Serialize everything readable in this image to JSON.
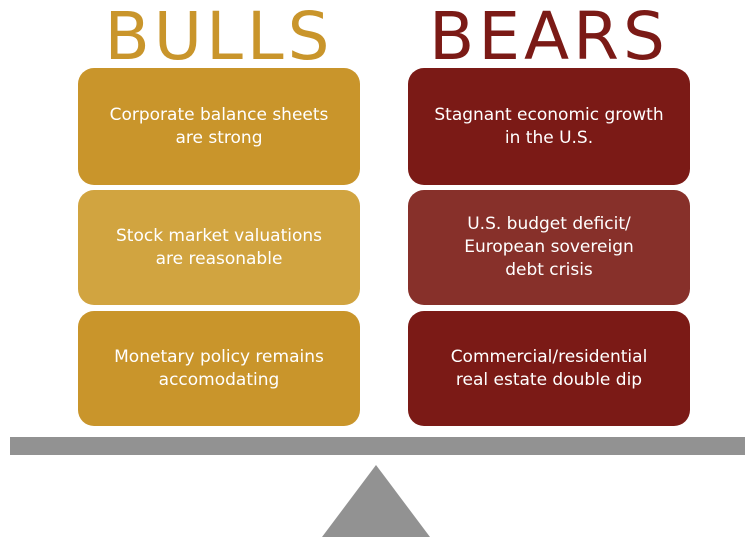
{
  "bulls": {
    "title": "BULLS",
    "items": [
      {
        "lines": [
          "Corporate balance sheets",
          "are strong"
        ]
      },
      {
        "lines": [
          "Stock market valuations",
          "are reasonable"
        ]
      },
      {
        "lines": [
          "Monetary policy remains",
          "accomodating"
        ]
      }
    ]
  },
  "bears": {
    "title": "BEARS",
    "items": [
      {
        "lines": [
          "Stagnant economic growth",
          "in the U.S."
        ]
      },
      {
        "lines": [
          "U.S. budget deficit/",
          "European sovereign",
          "debt crisis"
        ]
      },
      {
        "lines": [
          "Commercial/residential",
          "real estate double dip"
        ]
      }
    ]
  }
}
